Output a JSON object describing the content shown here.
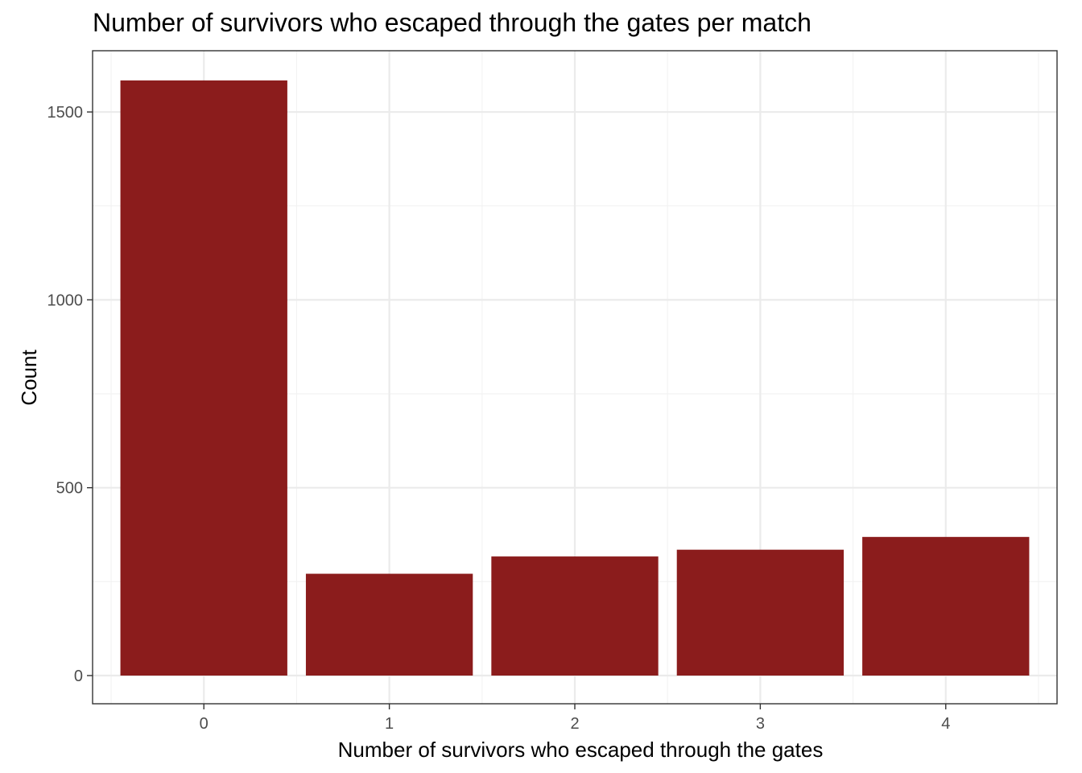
{
  "chart_data": {
    "type": "bar",
    "title": "Number of survivors who escaped through the gates per match",
    "xlabel": "Number of survivors who escaped through the gates",
    "ylabel": "Count",
    "categories": [
      "0",
      "1",
      "2",
      "3",
      "4"
    ],
    "values": [
      1584,
      271,
      317,
      335,
      369
    ],
    "ylim": [
      -75,
      1663
    ],
    "yticks": [
      0,
      500,
      1000,
      1500
    ],
    "yticks_labels": [
      "0",
      "500",
      "1000",
      "1500"
    ],
    "grid": true,
    "bar_color": "#8B1C1C",
    "legend": "none"
  }
}
